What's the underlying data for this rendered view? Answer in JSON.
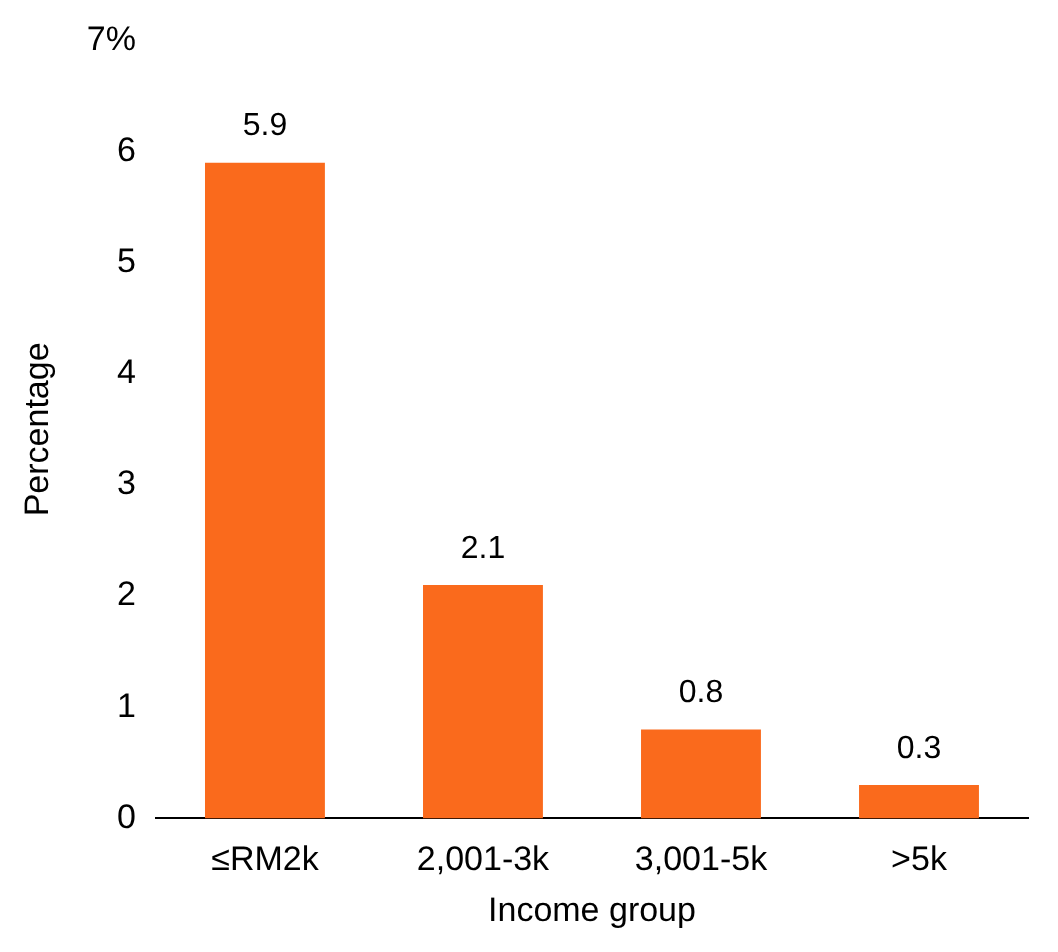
{
  "chart_data": {
    "type": "bar",
    "xlabel": "Income group",
    "ylabel": "Percentage",
    "categories": [
      "≤RM2k",
      "2,001-3k",
      "3,001-5k",
      ">5k"
    ],
    "values": [
      5.9,
      2.1,
      0.8,
      0.3
    ],
    "color": "#fa6a1c",
    "ylim": [
      0,
      7
    ],
    "yticks": [
      0,
      1,
      2,
      3,
      4,
      5,
      6,
      {
        "value": 7,
        "label": "7%"
      }
    ],
    "grid": false,
    "legend": false,
    "data_labels": true
  }
}
